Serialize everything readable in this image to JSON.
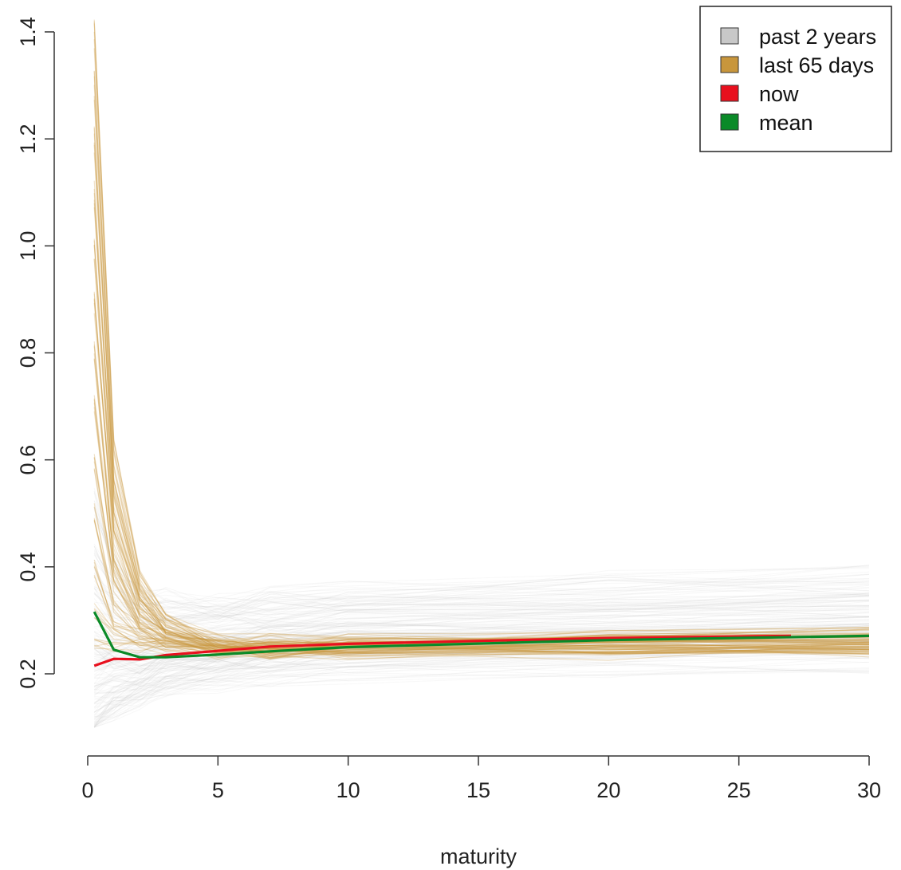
{
  "chart_data": {
    "type": "line",
    "title": "",
    "xlabel": "maturity",
    "ylabel": "",
    "xlim": [
      0,
      30
    ],
    "ylim": [
      0.1,
      1.4
    ],
    "x_ticks": [
      0,
      5,
      10,
      15,
      20,
      25,
      30
    ],
    "x_tick_labels": [
      "0",
      "5",
      "10",
      "15",
      "20",
      "25",
      "30"
    ],
    "y_ticks": [
      0.2,
      0.4,
      0.6,
      0.8,
      1.0,
      1.2,
      1.4
    ],
    "y_tick_labels": [
      "0.2",
      "0.4",
      "0.6",
      "0.8",
      "1.0",
      "1.2",
      "1.4"
    ],
    "grid": false,
    "legend_position": "top-right",
    "maturities": [
      0.25,
      1,
      2,
      3,
      5,
      7,
      10,
      20,
      30
    ],
    "series": [
      {
        "name": "past 2 years",
        "color": "#c8c8c8",
        "band": true,
        "representative_curves": [
          [
            0.1,
            0.14,
            0.16,
            0.18,
            0.2,
            0.21,
            0.22,
            0.23,
            0.24
          ],
          [
            0.12,
            0.15,
            0.17,
            0.19,
            0.21,
            0.22,
            0.23,
            0.24,
            0.25
          ],
          [
            0.14,
            0.16,
            0.18,
            0.2,
            0.22,
            0.23,
            0.24,
            0.25,
            0.26
          ],
          [
            0.16,
            0.18,
            0.19,
            0.21,
            0.22,
            0.23,
            0.24,
            0.25,
            0.25
          ],
          [
            0.18,
            0.19,
            0.2,
            0.22,
            0.23,
            0.24,
            0.25,
            0.26,
            0.27
          ],
          [
            0.2,
            0.21,
            0.22,
            0.23,
            0.24,
            0.25,
            0.26,
            0.27,
            0.28
          ],
          [
            0.23,
            0.23,
            0.24,
            0.25,
            0.26,
            0.27,
            0.28,
            0.29,
            0.3
          ],
          [
            0.26,
            0.25,
            0.25,
            0.26,
            0.27,
            0.28,
            0.29,
            0.3,
            0.31
          ],
          [
            0.3,
            0.28,
            0.27,
            0.27,
            0.28,
            0.29,
            0.3,
            0.31,
            0.32
          ],
          [
            0.34,
            0.31,
            0.29,
            0.29,
            0.3,
            0.3,
            0.31,
            0.32,
            0.33
          ],
          [
            0.38,
            0.33,
            0.31,
            0.3,
            0.31,
            0.32,
            0.33,
            0.34,
            0.35
          ],
          [
            0.42,
            0.36,
            0.33,
            0.32,
            0.32,
            0.33,
            0.34,
            0.36,
            0.37
          ],
          [
            0.52,
            0.4,
            0.35,
            0.34,
            0.33,
            0.34,
            0.35,
            0.37,
            0.38
          ],
          [
            0.11,
            0.13,
            0.15,
            0.17,
            0.18,
            0.19,
            0.2,
            0.21,
            0.22
          ],
          [
            0.24,
            0.22,
            0.22,
            0.23,
            0.24,
            0.25,
            0.26,
            0.27,
            0.28
          ]
        ]
      },
      {
        "name": "last 65 days",
        "color": "#c8963c",
        "band": true,
        "representative_curves": [
          [
            1.39,
            0.62,
            0.38,
            0.3,
            0.26,
            0.26,
            0.26,
            0.27,
            0.28
          ],
          [
            1.3,
            0.58,
            0.36,
            0.29,
            0.26,
            0.26,
            0.26,
            0.27,
            0.27
          ],
          [
            1.2,
            0.55,
            0.35,
            0.29,
            0.26,
            0.25,
            0.26,
            0.26,
            0.27
          ],
          [
            1.1,
            0.52,
            0.34,
            0.28,
            0.25,
            0.25,
            0.25,
            0.26,
            0.26
          ],
          [
            1.0,
            0.48,
            0.33,
            0.28,
            0.25,
            0.25,
            0.25,
            0.26,
            0.26
          ],
          [
            0.9,
            0.45,
            0.32,
            0.27,
            0.25,
            0.25,
            0.25,
            0.25,
            0.26
          ],
          [
            0.8,
            0.42,
            0.31,
            0.27,
            0.25,
            0.25,
            0.25,
            0.25,
            0.25
          ],
          [
            0.7,
            0.4,
            0.3,
            0.27,
            0.25,
            0.25,
            0.25,
            0.25,
            0.25
          ],
          [
            0.6,
            0.37,
            0.29,
            0.26,
            0.25,
            0.25,
            0.25,
            0.25,
            0.25
          ],
          [
            0.5,
            0.33,
            0.28,
            0.26,
            0.25,
            0.24,
            0.25,
            0.25,
            0.25
          ],
          [
            0.4,
            0.3,
            0.27,
            0.26,
            0.25,
            0.24,
            0.24,
            0.25,
            0.25
          ],
          [
            0.32,
            0.28,
            0.26,
            0.25,
            0.25,
            0.24,
            0.24,
            0.24,
            0.25
          ],
          [
            0.26,
            0.25,
            0.25,
            0.25,
            0.24,
            0.24,
            0.24,
            0.24,
            0.24
          ]
        ]
      },
      {
        "name": "now",
        "color": "#e8101e",
        "x": [
          0.25,
          1,
          2,
          3,
          5,
          7,
          10,
          20,
          27
        ],
        "values": [
          0.215,
          0.228,
          0.227,
          0.235,
          0.243,
          0.251,
          0.256,
          0.267,
          0.271
        ]
      },
      {
        "name": "mean",
        "color": "#0a8a28",
        "x": [
          0.25,
          1,
          2,
          3,
          5,
          7,
          10,
          20,
          30
        ],
        "values": [
          0.316,
          0.245,
          0.231,
          0.231,
          0.236,
          0.242,
          0.25,
          0.263,
          0.271
        ]
      }
    ]
  }
}
